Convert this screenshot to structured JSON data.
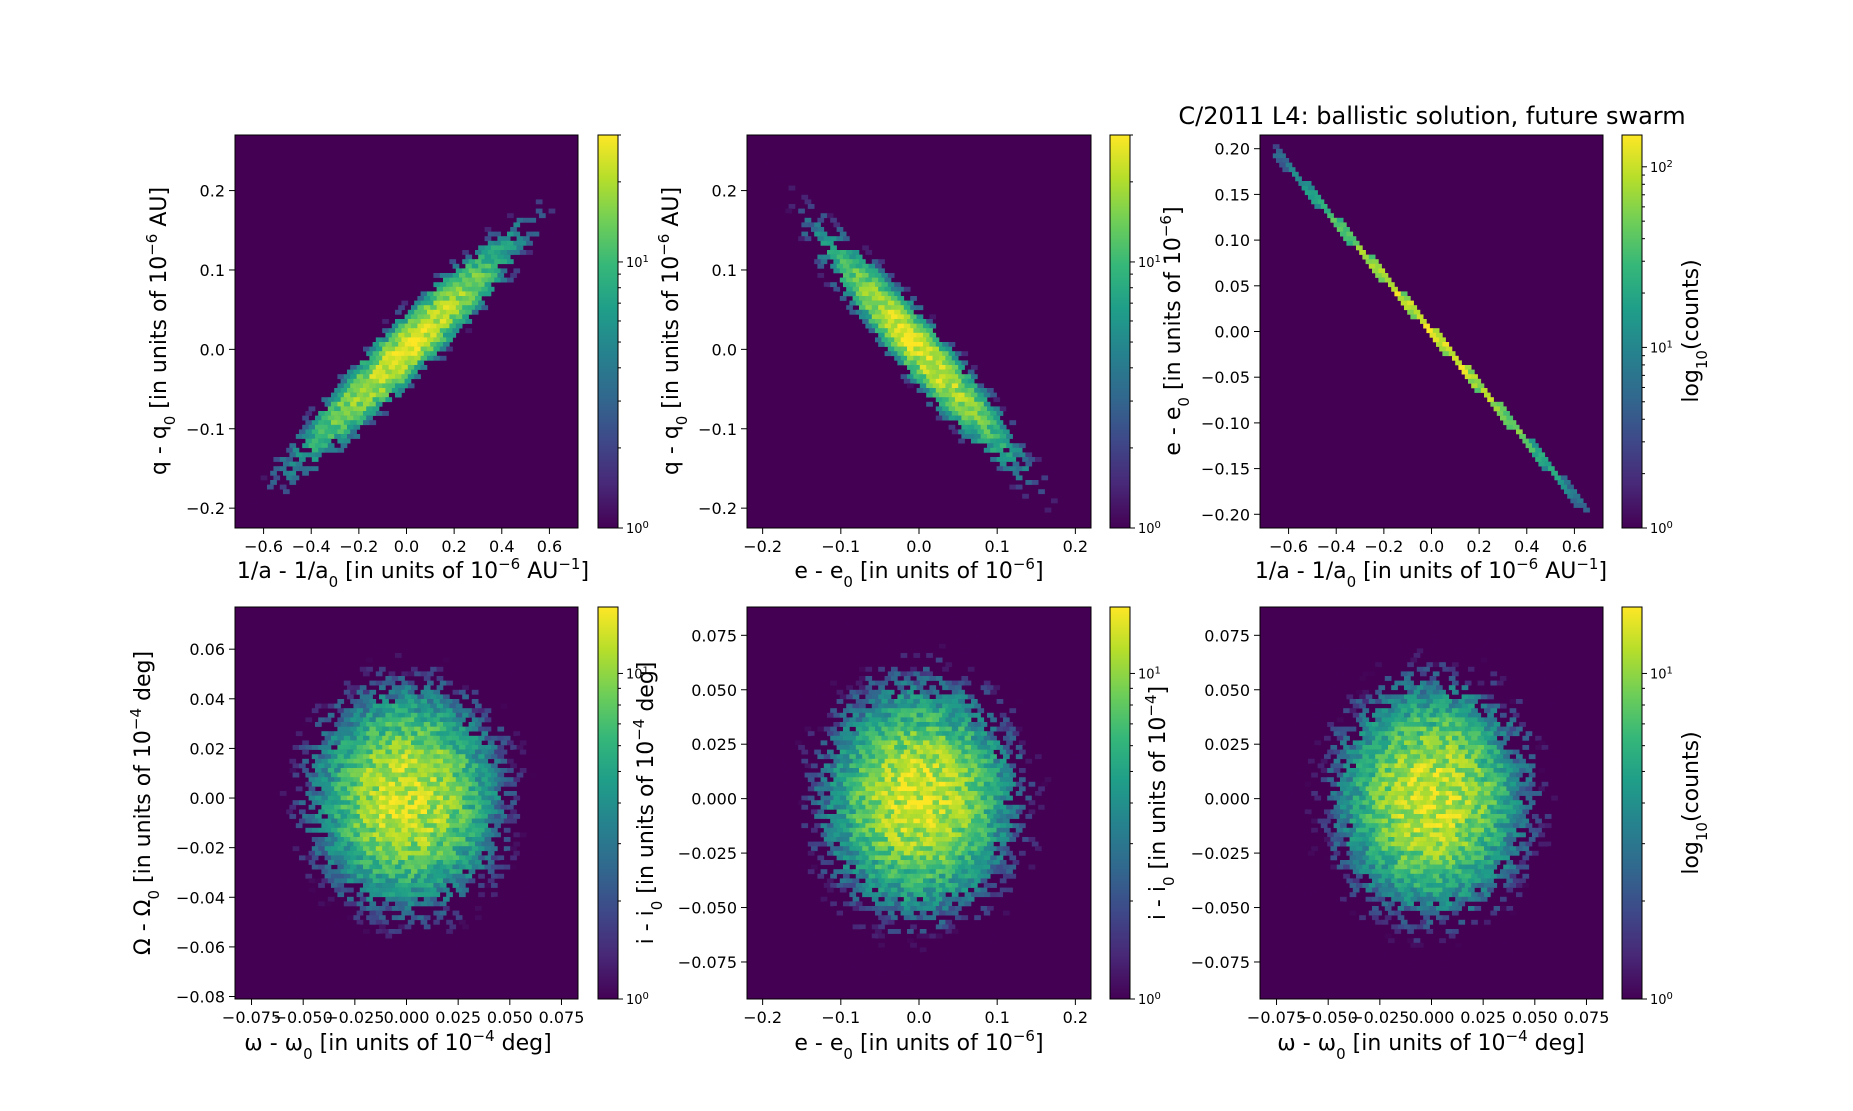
{
  "figure": {
    "title": "C/2011 L4: ballistic solution, future swarm",
    "colormap": [
      "#440154",
      "#482878",
      "#3e4989",
      "#31688e",
      "#26828e",
      "#1f9e89",
      "#35b779",
      "#6ece58",
      "#b5de2b",
      "#fde725"
    ]
  },
  "chart_data": [
    {
      "type": "heatmap",
      "name": "q-vs-inv-a",
      "xlabel": "1/a - 1/a",
      "xlabel_sub": "0",
      "xlabel_rest": " [in units of 10",
      "xlabel_sup": "−6",
      "xlabel_end": " AU",
      "xlabel_sup2": "−1",
      "xlabel_tail": "]",
      "ylabel": "q - q",
      "ylabel_sub": "0",
      "ylabel_rest": " [in units of 10",
      "ylabel_sup": "−6",
      "ylabel_end": " AU]",
      "xlim": [
        -0.72,
        0.72
      ],
      "ylim": [
        -0.225,
        0.27
      ],
      "xticks": [
        -0.6,
        -0.4,
        -0.2,
        0.0,
        0.2,
        0.4,
        0.6
      ],
      "xtick_labels": [
        "−0.6",
        "−0.4",
        "−0.2",
        "0.0",
        "0.2",
        "0.4",
        "0.6"
      ],
      "yticks": [
        -0.2,
        -0.1,
        0.0,
        0.1,
        0.2
      ],
      "ytick_labels": [
        "−0.2",
        "−0.1",
        "0.0",
        "0.1",
        "0.2"
      ],
      "distribution": {
        "sx": 0.26,
        "sy": 0.08,
        "rho": 0.95,
        "count_max": 30
      },
      "colorbar": {
        "scale": "log",
        "range": [
          1,
          30
        ],
        "ticks": [
          {
            "value": 1,
            "base": "10",
            "exp": "0"
          },
          {
            "value": 10,
            "base": "10",
            "exp": "1"
          }
        ],
        "label": ""
      }
    },
    {
      "type": "heatmap",
      "name": "q-vs-e",
      "xlabel": "e - e",
      "xlabel_sub": "0",
      "xlabel_rest": " [in units of 10",
      "xlabel_sup": "−6",
      "xlabel_end": "]",
      "ylabel": "q - q",
      "ylabel_sub": "0",
      "ylabel_rest": " [in units of 10",
      "ylabel_sup": "−6",
      "ylabel_end": " AU]",
      "xlim": [
        -0.22,
        0.22
      ],
      "ylim": [
        -0.225,
        0.27
      ],
      "xticks": [
        -0.2,
        -0.1,
        0.0,
        0.1,
        0.2
      ],
      "xtick_labels": [
        "−0.2",
        "−0.1",
        "0.0",
        "0.1",
        "0.2"
      ],
      "yticks": [
        -0.2,
        -0.1,
        0.0,
        0.1,
        0.2
      ],
      "ytick_labels": [
        "−0.2",
        "−0.1",
        "0.0",
        "0.1",
        "0.2"
      ],
      "distribution": {
        "sx": 0.07,
        "sy": 0.08,
        "rho": -0.95,
        "count_max": 30
      },
      "colorbar": {
        "scale": "log",
        "range": [
          1,
          30
        ],
        "ticks": [
          {
            "value": 1,
            "base": "10",
            "exp": "0"
          },
          {
            "value": 10,
            "base": "10",
            "exp": "1"
          }
        ],
        "label": ""
      }
    },
    {
      "type": "heatmap",
      "name": "e-vs-inv-a",
      "xlabel": "1/a - 1/a",
      "xlabel_sub": "0",
      "xlabel_rest": " [in units of 10",
      "xlabel_sup": "−6",
      "xlabel_end": " AU",
      "xlabel_sup2": "−1",
      "xlabel_tail": "]",
      "ylabel": "e - e",
      "ylabel_sub": "0",
      "ylabel_rest": " [in units of 10",
      "ylabel_sup": "−6",
      "ylabel_end": "]",
      "xlim": [
        -0.72,
        0.72
      ],
      "ylim": [
        -0.215,
        0.215
      ],
      "xticks": [
        -0.6,
        -0.4,
        -0.2,
        0.0,
        0.2,
        0.4,
        0.6
      ],
      "xtick_labels": [
        "−0.6",
        "−0.4",
        "−0.2",
        "0.0",
        "0.2",
        "0.4",
        "0.6"
      ],
      "yticks": [
        -0.2,
        -0.15,
        -0.1,
        -0.05,
        0.0,
        0.05,
        0.1,
        0.15,
        0.2
      ],
      "ytick_labels": [
        "−0.20",
        "−0.15",
        "−0.10",
        "−0.05",
        "0.00",
        "0.05",
        "0.10",
        "0.15",
        "0.20"
      ],
      "distribution": {
        "line": true,
        "slope": -0.3,
        "from": -0.66,
        "to": 0.66,
        "sigma": 0.26,
        "count_max": 150
      },
      "colorbar": {
        "scale": "log",
        "range": [
          1,
          150
        ],
        "ticks": [
          {
            "value": 1,
            "base": "10",
            "exp": "0"
          },
          {
            "value": 10,
            "base": "10",
            "exp": "1"
          },
          {
            "value": 100,
            "base": "10",
            "exp": "2"
          }
        ],
        "label": "log",
        "label_sub": "10",
        "label_rest": "(counts)"
      }
    },
    {
      "type": "heatmap",
      "name": "Omega-vs-omega",
      "xlabel": "ω - ω",
      "xlabel_sub": "0",
      "xlabel_rest": " [in units of 10",
      "xlabel_sup": "−4",
      "xlabel_end": " deg]",
      "ylabel": "Ω - Ω",
      "ylabel_sub": "0",
      "ylabel_rest": " [in units of 10",
      "ylabel_sup": "−4",
      "ylabel_end": " deg]",
      "xlim": [
        -0.083,
        0.083
      ],
      "ylim": [
        -0.081,
        0.077
      ],
      "xticks": [
        -0.075,
        -0.05,
        -0.025,
        0.0,
        0.025,
        0.05,
        0.075
      ],
      "xtick_labels": [
        "−0.075",
        "−0.050",
        "−0.025",
        "0.000",
        "0.025",
        "0.050",
        "0.075"
      ],
      "yticks": [
        -0.08,
        -0.06,
        -0.04,
        -0.02,
        0.0,
        0.02,
        0.04,
        0.06
      ],
      "ytick_labels": [
        "−0.08",
        "−0.06",
        "−0.04",
        "−0.02",
        "0.00",
        "0.02",
        "0.04",
        "0.06"
      ],
      "distribution": {
        "sx": 0.026,
        "sy": 0.025,
        "rho": 0.0,
        "count_max": 16
      },
      "colorbar": {
        "scale": "log",
        "range": [
          1,
          16
        ],
        "ticks": [
          {
            "value": 1,
            "base": "10",
            "exp": "0"
          },
          {
            "value": 10,
            "base": "10",
            "exp": "1"
          }
        ],
        "label": ""
      }
    },
    {
      "type": "heatmap",
      "name": "i-vs-e",
      "xlabel": "e - e",
      "xlabel_sub": "0",
      "xlabel_rest": " [in units of 10",
      "xlabel_sup": "−6",
      "xlabel_end": "]",
      "ylabel": "i - i",
      "ylabel_sub": "0",
      "ylabel_rest": " [in units of 10",
      "ylabel_sup": "−4",
      "ylabel_end": " deg]",
      "xlim": [
        -0.22,
        0.22
      ],
      "ylim": [
        -0.092,
        0.088
      ],
      "xticks": [
        -0.2,
        -0.1,
        0.0,
        0.1,
        0.2
      ],
      "xtick_labels": [
        "−0.2",
        "−0.1",
        "0.0",
        "0.1",
        "0.2"
      ],
      "yticks": [
        -0.075,
        -0.05,
        -0.025,
        0.0,
        0.025,
        0.05,
        0.075
      ],
      "ytick_labels": [
        "−0.075",
        "−0.050",
        "−0.025",
        "0.000",
        "0.025",
        "0.050",
        "0.075"
      ],
      "distribution": {
        "sx": 0.07,
        "sy": 0.03,
        "rho": 0.0,
        "count_max": 16
      },
      "colorbar": {
        "scale": "log",
        "range": [
          1,
          16
        ],
        "ticks": [
          {
            "value": 1,
            "base": "10",
            "exp": "0"
          },
          {
            "value": 10,
            "base": "10",
            "exp": "1"
          }
        ],
        "label": ""
      }
    },
    {
      "type": "heatmap",
      "name": "i-vs-omega",
      "xlabel": "ω - ω",
      "xlabel_sub": "0",
      "xlabel_rest": " [in units of 10",
      "xlabel_sup": "−4",
      "xlabel_end": " deg]",
      "ylabel": "i - i",
      "ylabel_sub": "0",
      "ylabel_rest": " [in units of 10",
      "ylabel_sup": "−4",
      "ylabel_end": "]",
      "xlim": [
        -0.083,
        0.083
      ],
      "ylim": [
        -0.092,
        0.088
      ],
      "xticks": [
        -0.075,
        -0.05,
        -0.025,
        0.0,
        0.025,
        0.05,
        0.075
      ],
      "xtick_labels": [
        "−0.075",
        "−0.050",
        "−0.025",
        "0.000",
        "0.025",
        "0.050",
        "0.075"
      ],
      "yticks": [
        -0.075,
        -0.05,
        -0.025,
        0.0,
        0.025,
        0.05,
        0.075
      ],
      "ytick_labels": [
        "−0.075",
        "−0.050",
        "−0.025",
        "0.000",
        "0.025",
        "0.050",
        "0.075"
      ],
      "distribution": {
        "sx": 0.026,
        "sy": 0.03,
        "rho": 0.0,
        "count_max": 16
      },
      "colorbar": {
        "scale": "log",
        "range": [
          1,
          16
        ],
        "ticks": [
          {
            "value": 1,
            "base": "10",
            "exp": "0"
          },
          {
            "value": 10,
            "base": "10",
            "exp": "1"
          }
        ],
        "label": "log",
        "label_sub": "10",
        "label_rest": "(counts)"
      }
    }
  ]
}
